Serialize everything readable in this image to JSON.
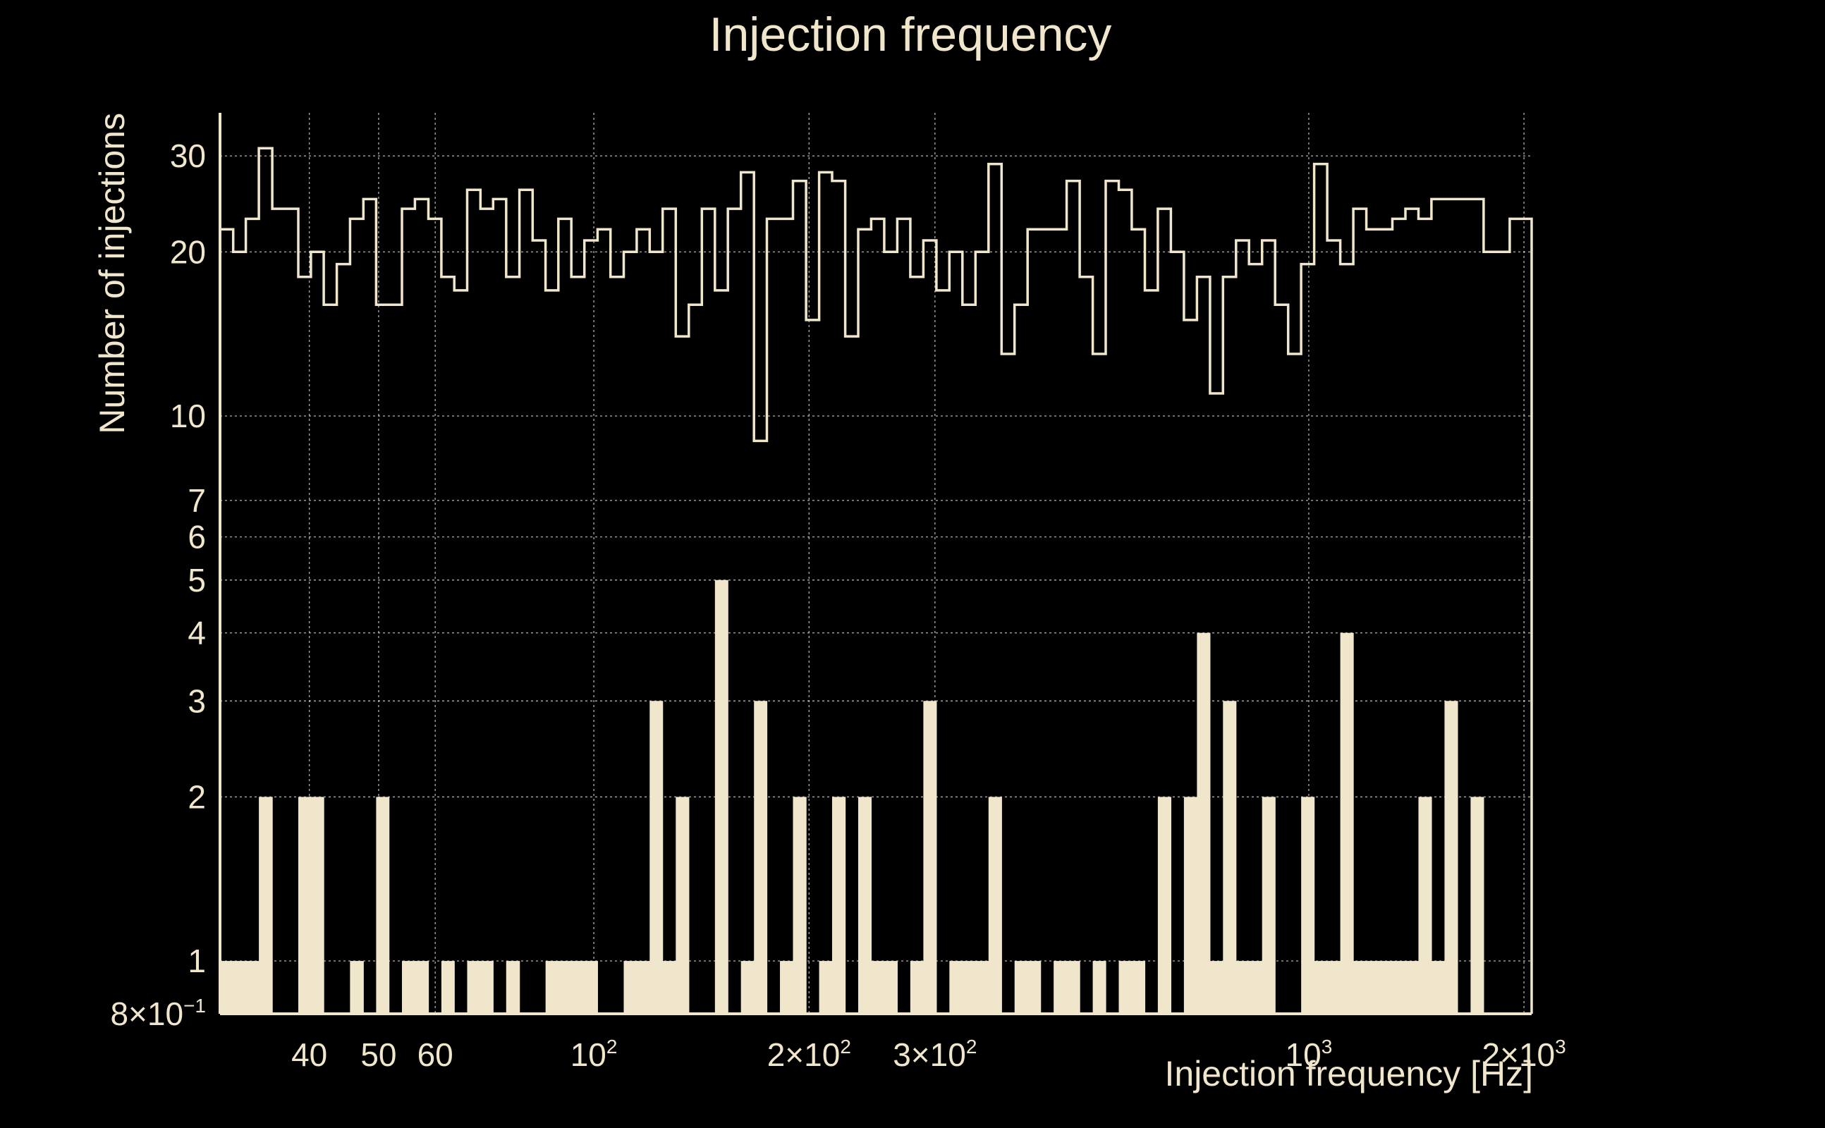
{
  "chart_data": {
    "type": "bar",
    "title": "Injection frequency",
    "xlabel": "Injection frequency [Hz]",
    "ylabel": "Number of injections",
    "x_scale": "log",
    "y_scale": "log",
    "xlim": [
      30,
      2050
    ],
    "ylim": [
      0.8,
      36
    ],
    "x_ticks": [
      {
        "value": 40,
        "label": "40"
      },
      {
        "value": 50,
        "label": "50"
      },
      {
        "value": 60,
        "label": "60"
      },
      {
        "value": 100,
        "label": "10",
        "sup": "2"
      },
      {
        "value": 200,
        "label": "2×10",
        "sup": "2"
      },
      {
        "value": 300,
        "label": "3×10",
        "sup": "2"
      },
      {
        "value": 1000,
        "label": "10",
        "sup": "3"
      },
      {
        "value": 2000,
        "label": "2×10",
        "sup": "3"
      }
    ],
    "y_ticks": [
      {
        "value": 0.8,
        "label": "8×10",
        "sup": "−1"
      },
      {
        "value": 1,
        "label": "1"
      },
      {
        "value": 2,
        "label": "2"
      },
      {
        "value": 3,
        "label": "3"
      },
      {
        "value": 4,
        "label": "4"
      },
      {
        "value": 5,
        "label": "5"
      },
      {
        "value": 6,
        "label": "6"
      },
      {
        "value": 7,
        "label": "7"
      },
      {
        "value": 10,
        "label": "10"
      },
      {
        "value": 20,
        "label": "20"
      },
      {
        "value": 30,
        "label": "30"
      }
    ],
    "grid": true,
    "x_edges": [
      30,
      31.3,
      32.6,
      34,
      35.5,
      37,
      38.6,
      40.2,
      41.9,
      43.7,
      45.6,
      47.6,
      49.6,
      51.7,
      53.9,
      56.2,
      58.7,
      61.2,
      63.8,
      66.5,
      69.4,
      72.3,
      75.4,
      78.7,
      82.1,
      85.6,
      89.2,
      93,
      97,
      101.2,
      105.5,
      110.1,
      114.8,
      119.7,
      124.8,
      130.2,
      135.8,
      141.6,
      147.7,
      154,
      160.6,
      167.5,
      174.6,
      182.1,
      189.9,
      198.1,
      206.6,
      215.4,
      224.7,
      234.3,
      244.3,
      254.8,
      265.7,
      277.1,
      289,
      301.4,
      314.3,
      327.8,
      341.8,
      356.5,
      371.8,
      387.7,
      404.3,
      421.6,
      439.7,
      458.5,
      478.2,
      498.7,
      520,
      542.3,
      565.5,
      589.8,
      615,
      641.4,
      668.9,
      697.6,
      727.5,
      758.6,
      791.1,
      825,
      860.4,
      897.3,
      935.7,
      975.8,
      1017.6,
      1061.3,
      1106.8,
      1154.2,
      1203.7,
      1255.3,
      1309.1,
      1365.2,
      1423.7,
      1484.7,
      1548.4,
      1614.8,
      1684,
      1756.2,
      1831.5,
      1910,
      1991.9,
      2050
    ],
    "series": [
      {
        "style": "step",
        "values": [
          22,
          20,
          23,
          31,
          24,
          24,
          18,
          20,
          16,
          19,
          23,
          25,
          16,
          16,
          24,
          25,
          23,
          18,
          17,
          26,
          24,
          25,
          18,
          26,
          21,
          17,
          23,
          18,
          21,
          22,
          18,
          20,
          22,
          20,
          24,
          14,
          16,
          24,
          17,
          24,
          28,
          9,
          23,
          23,
          27,
          15,
          28,
          27,
          14,
          22,
          23,
          20,
          23,
          18,
          21,
          17,
          20,
          16,
          20,
          29,
          13,
          16,
          22,
          22,
          22,
          27,
          18,
          13,
          27,
          26,
          22,
          17,
          24,
          20,
          15,
          18,
          11,
          18,
          21,
          19,
          21,
          16,
          13,
          19,
          29,
          21,
          19,
          24,
          22,
          22,
          23,
          24,
          23,
          25,
          25,
          25,
          25,
          20,
          20,
          23,
          23
        ]
      },
      {
        "style": "filled",
        "values": [
          1,
          1,
          1,
          2,
          0,
          0,
          2,
          2,
          0,
          0,
          1,
          0,
          2,
          0,
          1,
          1,
          0,
          1,
          0,
          1,
          1,
          0,
          1,
          0,
          0,
          1,
          1,
          1,
          1,
          0,
          0,
          1,
          1,
          3,
          1,
          2,
          0,
          0,
          5,
          0,
          1,
          3,
          0,
          1,
          2,
          0,
          1,
          2,
          0,
          2,
          1,
          1,
          0,
          1,
          3,
          0,
          1,
          1,
          1,
          2,
          0,
          1,
          1,
          0,
          1,
          1,
          0,
          1,
          0,
          1,
          1,
          0,
          2,
          0,
          2,
          4,
          1,
          3,
          1,
          1,
          2,
          0,
          0,
          2,
          1,
          1,
          4,
          1,
          1,
          1,
          1,
          1,
          2,
          1,
          3,
          0,
          2,
          0,
          0,
          0,
          0
        ]
      }
    ]
  }
}
